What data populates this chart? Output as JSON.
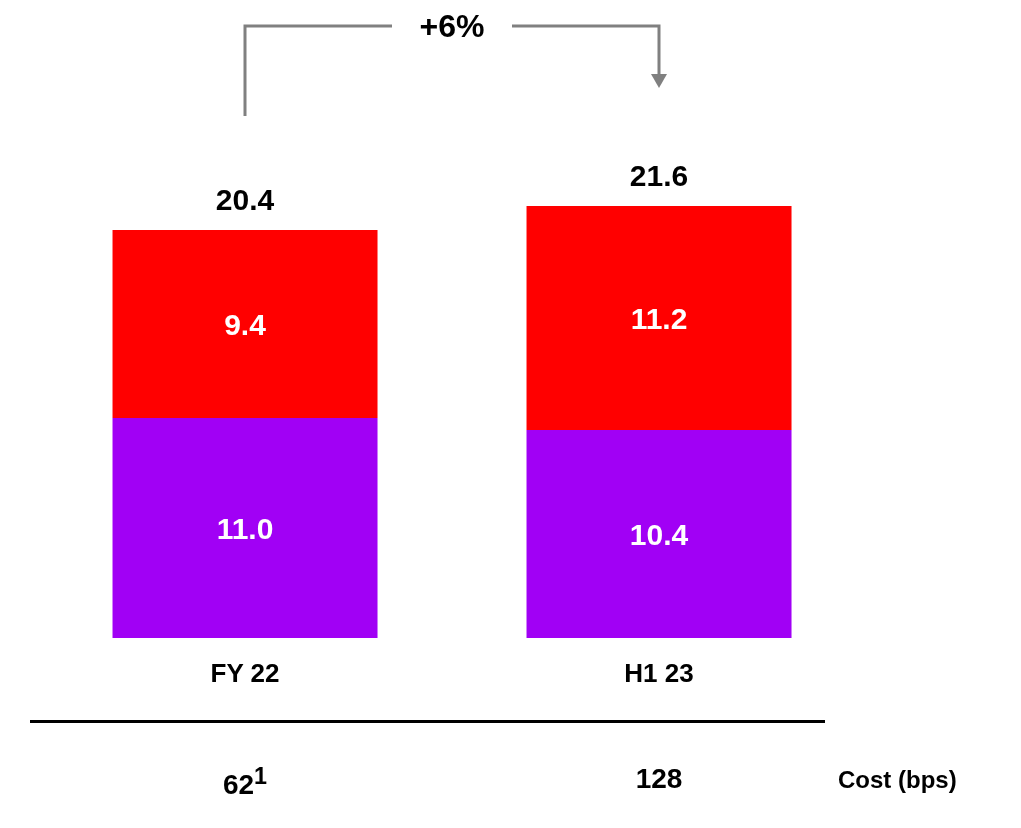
{
  "chart_data": {
    "type": "bar",
    "stacked": true,
    "categories": [
      "FY 22",
      "H1 23"
    ],
    "series": [
      {
        "color": "#a100f5",
        "values": [
          11.0,
          10.4
        ],
        "value_labels": [
          "11.0",
          "10.4"
        ]
      },
      {
        "color": "#ff0000",
        "values": [
          9.4,
          11.2
        ],
        "value_labels": [
          "9.4",
          "11.2"
        ]
      }
    ],
    "totals": [
      "20.4",
      "21.6"
    ],
    "annotations": [
      "+6%",
      "62$^{1}$",
      "128",
      "Cost (bps)"
    ],
    "legend": false,
    "grid": false
  }
}
